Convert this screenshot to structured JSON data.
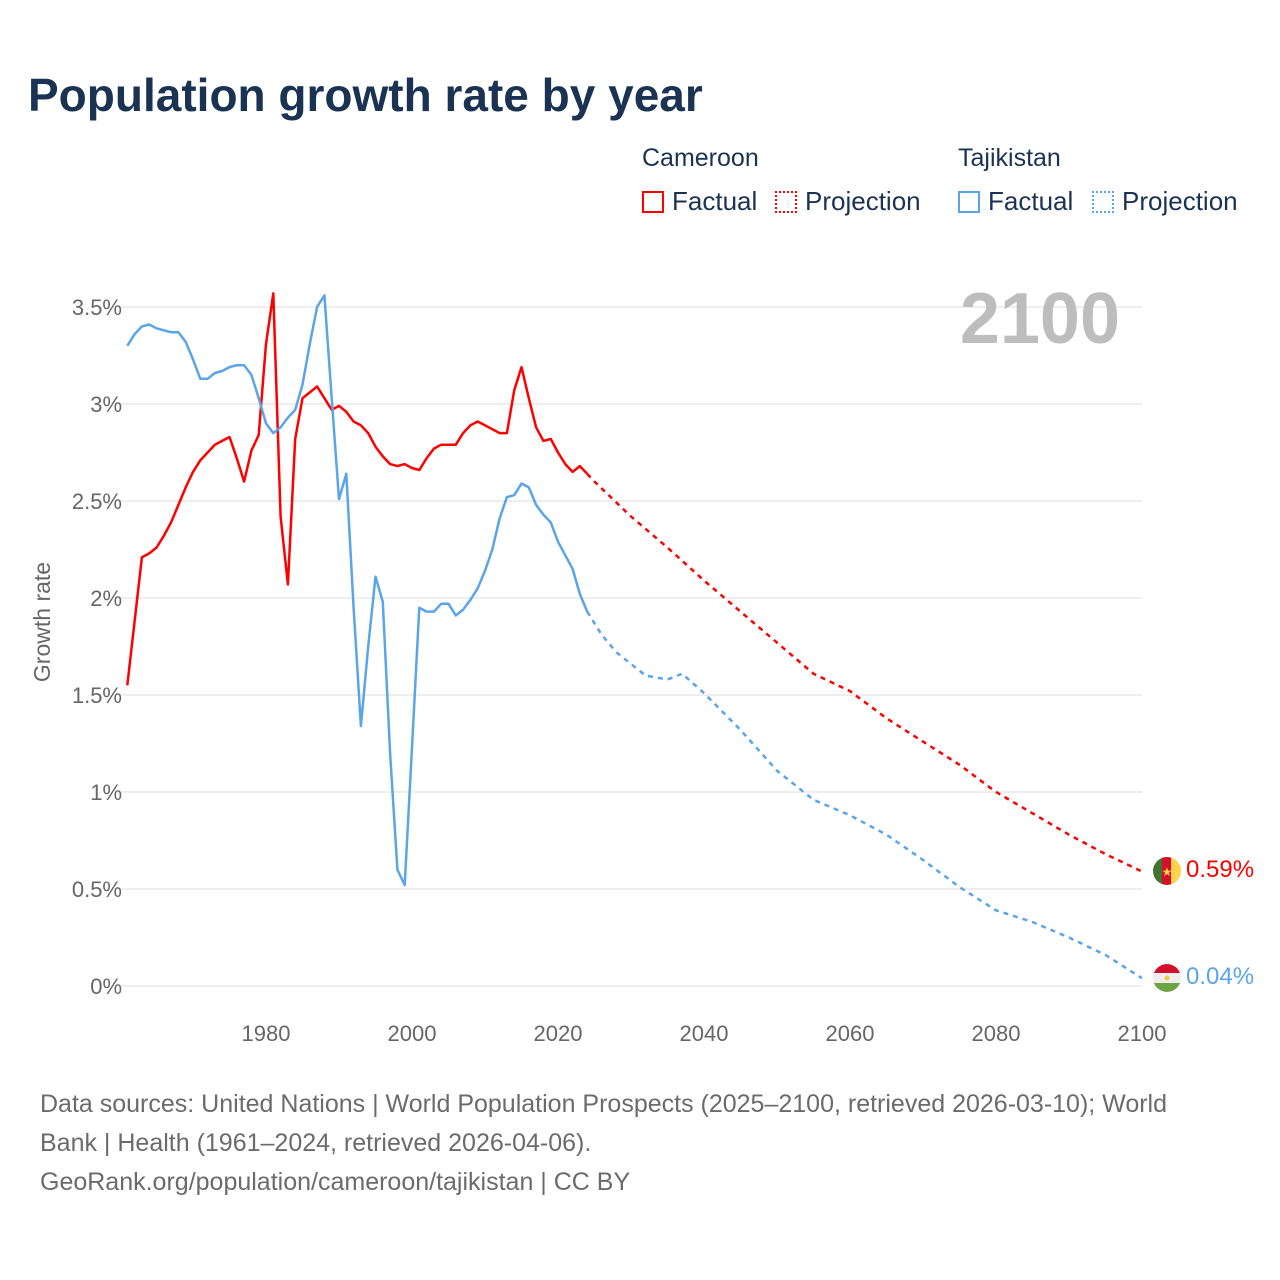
{
  "title": "Population growth rate by year",
  "legend": {
    "groups": [
      {
        "country": "Cameroon",
        "factual": "Factual",
        "projection": "Projection"
      },
      {
        "country": "Tajikistan",
        "factual": "Factual",
        "projection": "Projection"
      }
    ]
  },
  "colors": {
    "cameroon": "#ff0000",
    "tajikistan": "#5aa5ea",
    "grid": "#e8e8e8",
    "axis_text": "#666666",
    "year_watermark": "#bdbdbd"
  },
  "footer": {
    "line1": "Data sources: United Nations | World Population Prospects (2025–2100, retrieved 2026-03-10); World",
    "line2": "Bank | Health (1961–2024, retrieved 2026-04-06).",
    "line3": "GeoRank.org/population/cameroon/tajikistan | CC BY"
  },
  "chart_data": {
    "type": "line",
    "title": "Population growth rate by year",
    "xlabel": "",
    "ylabel": "Growth rate",
    "xlim": [
      1961,
      2100
    ],
    "ylim": [
      0,
      3.5
    ],
    "x_ticks": [
      1980,
      2000,
      2020,
      2040,
      2060,
      2080,
      2100
    ],
    "y_ticks": [
      0,
      0.5,
      1,
      1.5,
      2,
      2.5,
      3,
      3.5
    ],
    "y_tick_labels": [
      "0%",
      "0.5%",
      "1%",
      "1.5%",
      "2%",
      "2.5%",
      "3%",
      "3.5%"
    ],
    "grid": true,
    "current_year_label": "2100",
    "series": [
      {
        "name": "Cameroon",
        "color": "#ff0000",
        "flag": "cameroon-flag",
        "end_label": "0.59%",
        "factual": {
          "start_year": 1961,
          "values": [
            1.55,
            1.88,
            2.21,
            2.23,
            2.26,
            2.32,
            2.39,
            2.48,
            2.57,
            2.65,
            2.71,
            2.75,
            2.79,
            2.81,
            2.83,
            2.72,
            2.6,
            2.76,
            2.84,
            3.31,
            3.57,
            2.42,
            2.07,
            2.82,
            3.03,
            3.06,
            3.09,
            3.03,
            2.97,
            2.99,
            2.96,
            2.91,
            2.89,
            2.85,
            2.78,
            2.73,
            2.69,
            2.68,
            2.69,
            2.67,
            2.66,
            2.72,
            2.77,
            2.79,
            2.79,
            2.79,
            2.85,
            2.89,
            2.91,
            2.89,
            2.87,
            2.85,
            2.85,
            3.07,
            3.19,
            3.03,
            2.88,
            2.81,
            2.82,
            2.75,
            2.69,
            2.65,
            2.68,
            2.64
          ]
        },
        "projection": {
          "years": [
            2024,
            2025,
            2030,
            2035,
            2040,
            2045,
            2050,
            2055,
            2060,
            2065,
            2070,
            2075,
            2080,
            2085,
            2090,
            2095,
            2100
          ],
          "values": [
            2.64,
            2.6,
            2.42,
            2.26,
            2.09,
            1.93,
            1.77,
            1.61,
            1.52,
            1.38,
            1.26,
            1.14,
            1.0,
            0.89,
            0.78,
            0.68,
            0.59
          ]
        }
      },
      {
        "name": "Tajikistan",
        "color": "#5aa5ea",
        "flag": "tajikistan-flag",
        "end_label": "0.04%",
        "factual": {
          "start_year": 1961,
          "values": [
            3.3,
            3.36,
            3.4,
            3.41,
            3.39,
            3.38,
            3.37,
            3.37,
            3.32,
            3.23,
            3.13,
            3.13,
            3.16,
            3.17,
            3.19,
            3.2,
            3.2,
            3.15,
            3.03,
            2.9,
            2.85,
            2.88,
            2.93,
            2.97,
            3.1,
            3.31,
            3.5,
            3.56,
            3.03,
            2.51,
            2.64,
            1.95,
            1.34,
            1.75,
            2.11,
            1.98,
            1.2,
            0.6,
            0.52,
            1.23,
            1.95,
            1.93,
            1.93,
            1.97,
            1.97,
            1.91,
            1.94,
            1.99,
            2.05,
            2.14,
            2.25,
            2.41,
            2.52,
            2.53,
            2.59,
            2.57,
            2.48,
            2.43,
            2.39,
            2.29,
            2.22,
            2.15,
            2.02,
            1.93
          ]
        },
        "projection": {
          "years": [
            2024,
            2026,
            2028,
            2030,
            2032,
            2035,
            2037,
            2040,
            2045,
            2050,
            2055,
            2060,
            2065,
            2070,
            2075,
            2080,
            2085,
            2090,
            2095,
            2100
          ],
          "values": [
            1.93,
            1.81,
            1.72,
            1.66,
            1.6,
            1.58,
            1.61,
            1.51,
            1.32,
            1.11,
            0.96,
            0.88,
            0.78,
            0.65,
            0.51,
            0.39,
            0.33,
            0.25,
            0.16,
            0.04
          ]
        }
      }
    ]
  }
}
